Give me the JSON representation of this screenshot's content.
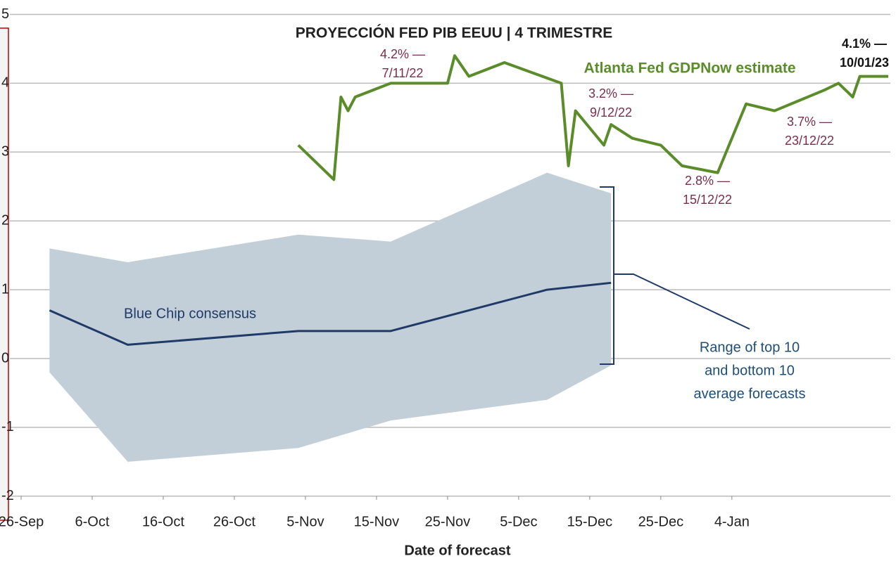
{
  "chart_data": {
    "type": "line",
    "title": "PROYECCIÓN FED PIB EEUU | 4 TRIMESTRE",
    "xlabel": "Date of forecast",
    "xlim": [
      0,
      122
    ],
    "xticks": [
      {
        "value": 0,
        "label": "26-Sep"
      },
      {
        "value": 10,
        "label": "6-Oct"
      },
      {
        "value": 20,
        "label": "16-Oct"
      },
      {
        "value": 30,
        "label": "26-Oct"
      },
      {
        "value": 40,
        "label": "5-Nov"
      },
      {
        "value": 50,
        "label": "15-Nov"
      },
      {
        "value": 60,
        "label": "25-Nov"
      },
      {
        "value": 70,
        "label": "5-Dec"
      },
      {
        "value": 80,
        "label": "15-Dec"
      },
      {
        "value": 90,
        "label": "25-Dec"
      },
      {
        "value": 100,
        "label": "4-Jan"
      }
    ],
    "ylim": [
      -2,
      5
    ],
    "yticks": [
      5,
      4,
      3,
      2,
      1,
      0,
      -1,
      -2
    ],
    "grid": true,
    "series": [
      {
        "name": "Atlanta Fed GDPNow estimate",
        "color": "#5b8c2a",
        "x": [
          39,
          44,
          45,
          46,
          47,
          52,
          60,
          61,
          63,
          68,
          76,
          77,
          78,
          82,
          83,
          86,
          90,
          93,
          98,
          102,
          106,
          113,
          115,
          117,
          118,
          122
        ],
        "values": [
          3.1,
          2.6,
          3.8,
          3.6,
          3.8,
          4.0,
          4.0,
          4.4,
          4.1,
          4.3,
          4.0,
          2.8,
          3.6,
          3.1,
          3.4,
          3.2,
          3.1,
          2.8,
          2.7,
          3.7,
          3.6,
          3.9,
          4.0,
          3.8,
          4.1,
          4.1
        ]
      },
      {
        "name": "Blue Chip consensus",
        "color": "#1f3a68",
        "x": [
          4,
          15,
          39,
          52,
          74,
          83
        ],
        "values": [
          0.7,
          0.2,
          0.4,
          0.4,
          1.0,
          1.1
        ]
      }
    ],
    "band": {
      "label": [
        "Range of top 10",
        "and bottom 10",
        "average forecasts"
      ],
      "color": "#c3cfd8",
      "label_color": "#1f4e79",
      "x": [
        4,
        15,
        39,
        52,
        74,
        83
      ],
      "upper": [
        1.6,
        1.4,
        1.8,
        1.7,
        2.7,
        2.4
      ],
      "lower": [
        -0.2,
        -1.5,
        -1.3,
        -0.9,
        -0.6,
        -0.1
      ]
    },
    "annotations": [
      {
        "text": [
          "4.2% —",
          "7/11/22"
        ],
        "color": "#7b2e4a"
      },
      {
        "text": [
          "3.2% —",
          "9/12/22"
        ],
        "color": "#7b2e4a"
      },
      {
        "text": [
          "2.8% —",
          "15/12/22"
        ],
        "color": "#7b2e4a"
      },
      {
        "text": [
          "3.7% —",
          "23/12/22"
        ],
        "color": "#7b2e4a"
      },
      {
        "text": [
          "4.1% —",
          "10/01/23"
        ],
        "color": "#111111"
      }
    ]
  }
}
